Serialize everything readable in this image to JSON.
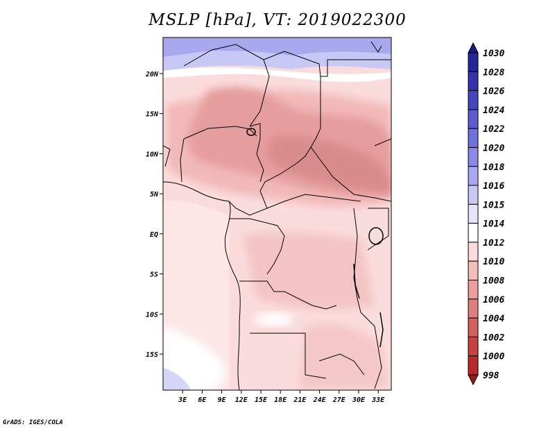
{
  "title": "MSLP [hPa], VT: 2019022300",
  "credit": "GrADS: IGES/COLA",
  "map": {
    "lat_labels": [
      "20N",
      "15N",
      "10N",
      "5N",
      "EQ",
      "5S",
      "10S",
      "15S"
    ],
    "lat_values": [
      20,
      15,
      10,
      5,
      0,
      -5,
      -10,
      -15
    ],
    "lon_labels": [
      "3E",
      "6E",
      "9E",
      "12E",
      "15E",
      "18E",
      "21E",
      "24E",
      "27E",
      "30E",
      "33E"
    ],
    "lon_values": [
      3,
      6,
      9,
      12,
      15,
      18,
      21,
      24,
      27,
      30,
      33
    ],
    "lat_range": [
      -19.5,
      24.5
    ],
    "lon_range": [
      0,
      35
    ]
  },
  "colorbar": {
    "labels": [
      "1030",
      "1028",
      "1026",
      "1024",
      "1022",
      "1020",
      "1018",
      "1016",
      "1015",
      "1014",
      "1012",
      "1010",
      "1008",
      "1006",
      "1004",
      "1002",
      "1000",
      "998"
    ],
    "colors": [
      "#1a1a80",
      "#26269a",
      "#3333b0",
      "#4646c3",
      "#5a5ad2",
      "#7070de",
      "#8a8ae6",
      "#a8a8ee",
      "#c8c8f6",
      "#e4e4fa",
      "#ffffff",
      "#fbdada",
      "#f5bcbc",
      "#ec9e9e",
      "#e07f7f",
      "#d46060",
      "#c84040",
      "#b82a2a",
      "#a01818"
    ]
  }
}
